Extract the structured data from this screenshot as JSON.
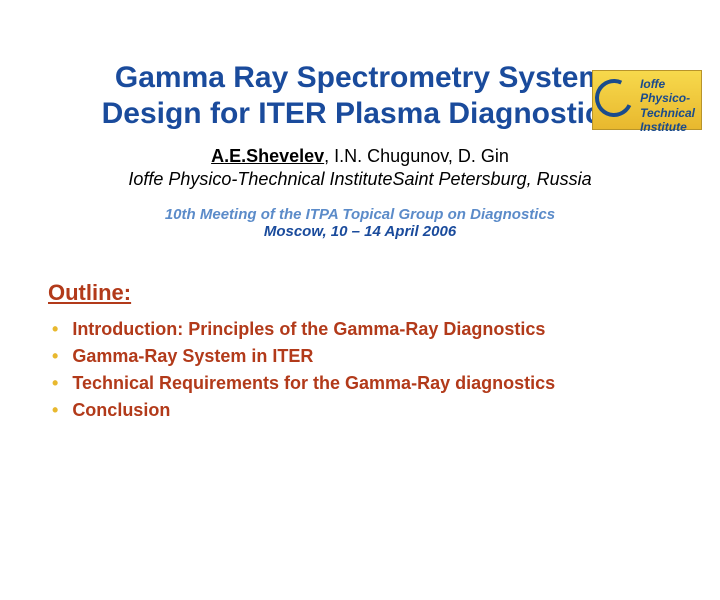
{
  "logo": {
    "line1": "Ioffe",
    "line2": "Physico-",
    "line3": "Technical",
    "line4": "Institute"
  },
  "title": {
    "line1": "Gamma Ray Spectrometry System",
    "line2": "Design for ITER Plasma Diagnostics"
  },
  "authors": {
    "lead": "A.E.Shevelev",
    "rest": ", I.N. Chugunov, D. Gin"
  },
  "affiliation": "Ioffe Physico-Thechnical InstituteSaint Petersburg, Russia",
  "meeting": {
    "line1": "10th Meeting of the ITPA Topical Group on Diagnostics",
    "line2": "Moscow, 10 – 14 April 2006"
  },
  "outline": {
    "heading": "Outline:",
    "items": [
      "Introduction: Principles of the Gamma-Ray Diagnostics",
      "Gamma-Ray System in ITER",
      "Technical Requirements for the Gamma-Ray diagnostics",
      "Conclusion"
    ]
  },
  "colors": {
    "title_color": "#1a4b9c",
    "outline_color": "#b23a1a",
    "bullet_color": "#e8b82e",
    "meeting_light": "#5b8bc9",
    "background": "#ffffff"
  }
}
